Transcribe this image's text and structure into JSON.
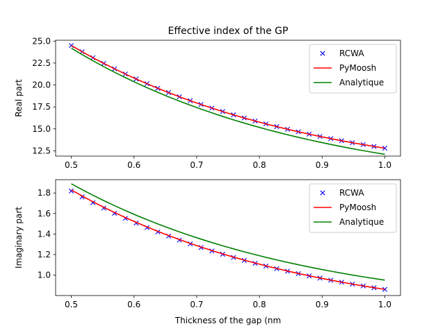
{
  "chart_data": [
    {
      "type": "line",
      "title": "Effective index of the GP",
      "xlabel": "",
      "ylabel": "Real part",
      "xlim": [
        0.475,
        1.025
      ],
      "ylim": [
        11.9,
        25.1
      ],
      "xticks": [
        0.5,
        0.6,
        0.7,
        0.8,
        0.9,
        1.0
      ],
      "xtick_labels": [
        "0.5",
        "0.6",
        "0.7",
        "0.8",
        "0.9",
        "1.0"
      ],
      "yticks": [
        12.5,
        15.0,
        17.5,
        20.0,
        22.5,
        25.0
      ],
      "ytick_labels": [
        "12.5",
        "15.0",
        "17.5",
        "20.0",
        "22.5",
        "25.0"
      ],
      "legend_position": "top-right",
      "series": [
        {
          "name": "RCWA",
          "style": "markers",
          "marker": "x",
          "color": "#0000ff",
          "x": {
            "start": 0.5,
            "end": 1.0,
            "count": 30
          },
          "y": {
            "start": 24.5,
            "end": 12.8,
            "count": 30
          }
        },
        {
          "name": "PyMoosh",
          "style": "line",
          "color": "#ff0000",
          "x": {
            "start": 0.5,
            "end": 1.0,
            "count": 30
          },
          "y": {
            "start": 24.5,
            "end": 12.8,
            "count": 30
          }
        },
        {
          "name": "Analytique",
          "style": "line",
          "color": "#008000",
          "x": {
            "start": 0.5,
            "end": 1.0,
            "count": 30
          },
          "y": {
            "start": 24.2,
            "end": 12.1,
            "count": 30
          }
        }
      ]
    },
    {
      "type": "line",
      "title": "",
      "xlabel": "Thickness of the gap (nm",
      "ylabel": "Imaginary part",
      "xlim": [
        0.475,
        1.025
      ],
      "ylim": [
        0.8,
        1.93
      ],
      "xticks": [
        0.5,
        0.6,
        0.7,
        0.8,
        0.9,
        1.0
      ],
      "xtick_labels": [
        "0.5",
        "0.6",
        "0.7",
        "0.8",
        "0.9",
        "1.0"
      ],
      "yticks": [
        1.0,
        1.2,
        1.4,
        1.6,
        1.8
      ],
      "ytick_labels": [
        "1.0",
        "1.2",
        "1.4",
        "1.6",
        "1.8"
      ],
      "legend_position": "top-right",
      "series": [
        {
          "name": "RCWA",
          "style": "markers",
          "marker": "x",
          "color": "#0000ff",
          "x": {
            "start": 0.5,
            "end": 1.0,
            "count": 30
          },
          "y": {
            "start": 1.82,
            "end": 0.86,
            "count": 30
          }
        },
        {
          "name": "PyMoosh",
          "style": "line",
          "color": "#ff0000",
          "x": {
            "start": 0.5,
            "end": 1.0,
            "count": 30
          },
          "y": {
            "start": 1.83,
            "end": 0.86,
            "count": 30
          }
        },
        {
          "name": "Analytique",
          "style": "line",
          "color": "#008000",
          "x": {
            "start": 0.5,
            "end": 1.0,
            "count": 30
          },
          "y": {
            "start": 1.89,
            "end": 0.95,
            "count": 30
          }
        }
      ]
    }
  ]
}
